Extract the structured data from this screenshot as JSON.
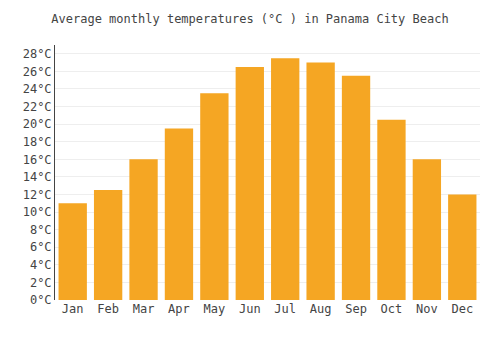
{
  "chart_data": {
    "type": "bar",
    "title": "Average monthly temperatures (°C ) in Panama City Beach",
    "categories": [
      "Jan",
      "Feb",
      "Mar",
      "Apr",
      "May",
      "Jun",
      "Jul",
      "Aug",
      "Sep",
      "Oct",
      "Nov",
      "Dec"
    ],
    "values": [
      11.0,
      12.5,
      16.0,
      19.5,
      23.5,
      26.5,
      27.5,
      27.0,
      25.5,
      20.5,
      16.0,
      12.0
    ],
    "color": "#F5A623",
    "ylim": [
      0,
      29
    ],
    "yticks": [
      {
        "value": 0,
        "label": "0°C"
      },
      {
        "value": 2,
        "label": "2°C"
      },
      {
        "value": 4,
        "label": "4°C"
      },
      {
        "value": 6,
        "label": "6°C"
      },
      {
        "value": 8,
        "label": "8°C"
      },
      {
        "value": 10,
        "label": "10°C"
      },
      {
        "value": 12,
        "label": "12°C"
      },
      {
        "value": 14,
        "label": "14°C"
      },
      {
        "value": 16,
        "label": "16°C"
      },
      {
        "value": 18,
        "label": "18°C"
      },
      {
        "value": 20,
        "label": "20°C"
      },
      {
        "value": 22,
        "label": "22°C"
      },
      {
        "value": 24,
        "label": "24°C"
      },
      {
        "value": 26,
        "label": "26°C"
      },
      {
        "value": 28,
        "label": "28°C"
      }
    ],
    "grid": true
  }
}
